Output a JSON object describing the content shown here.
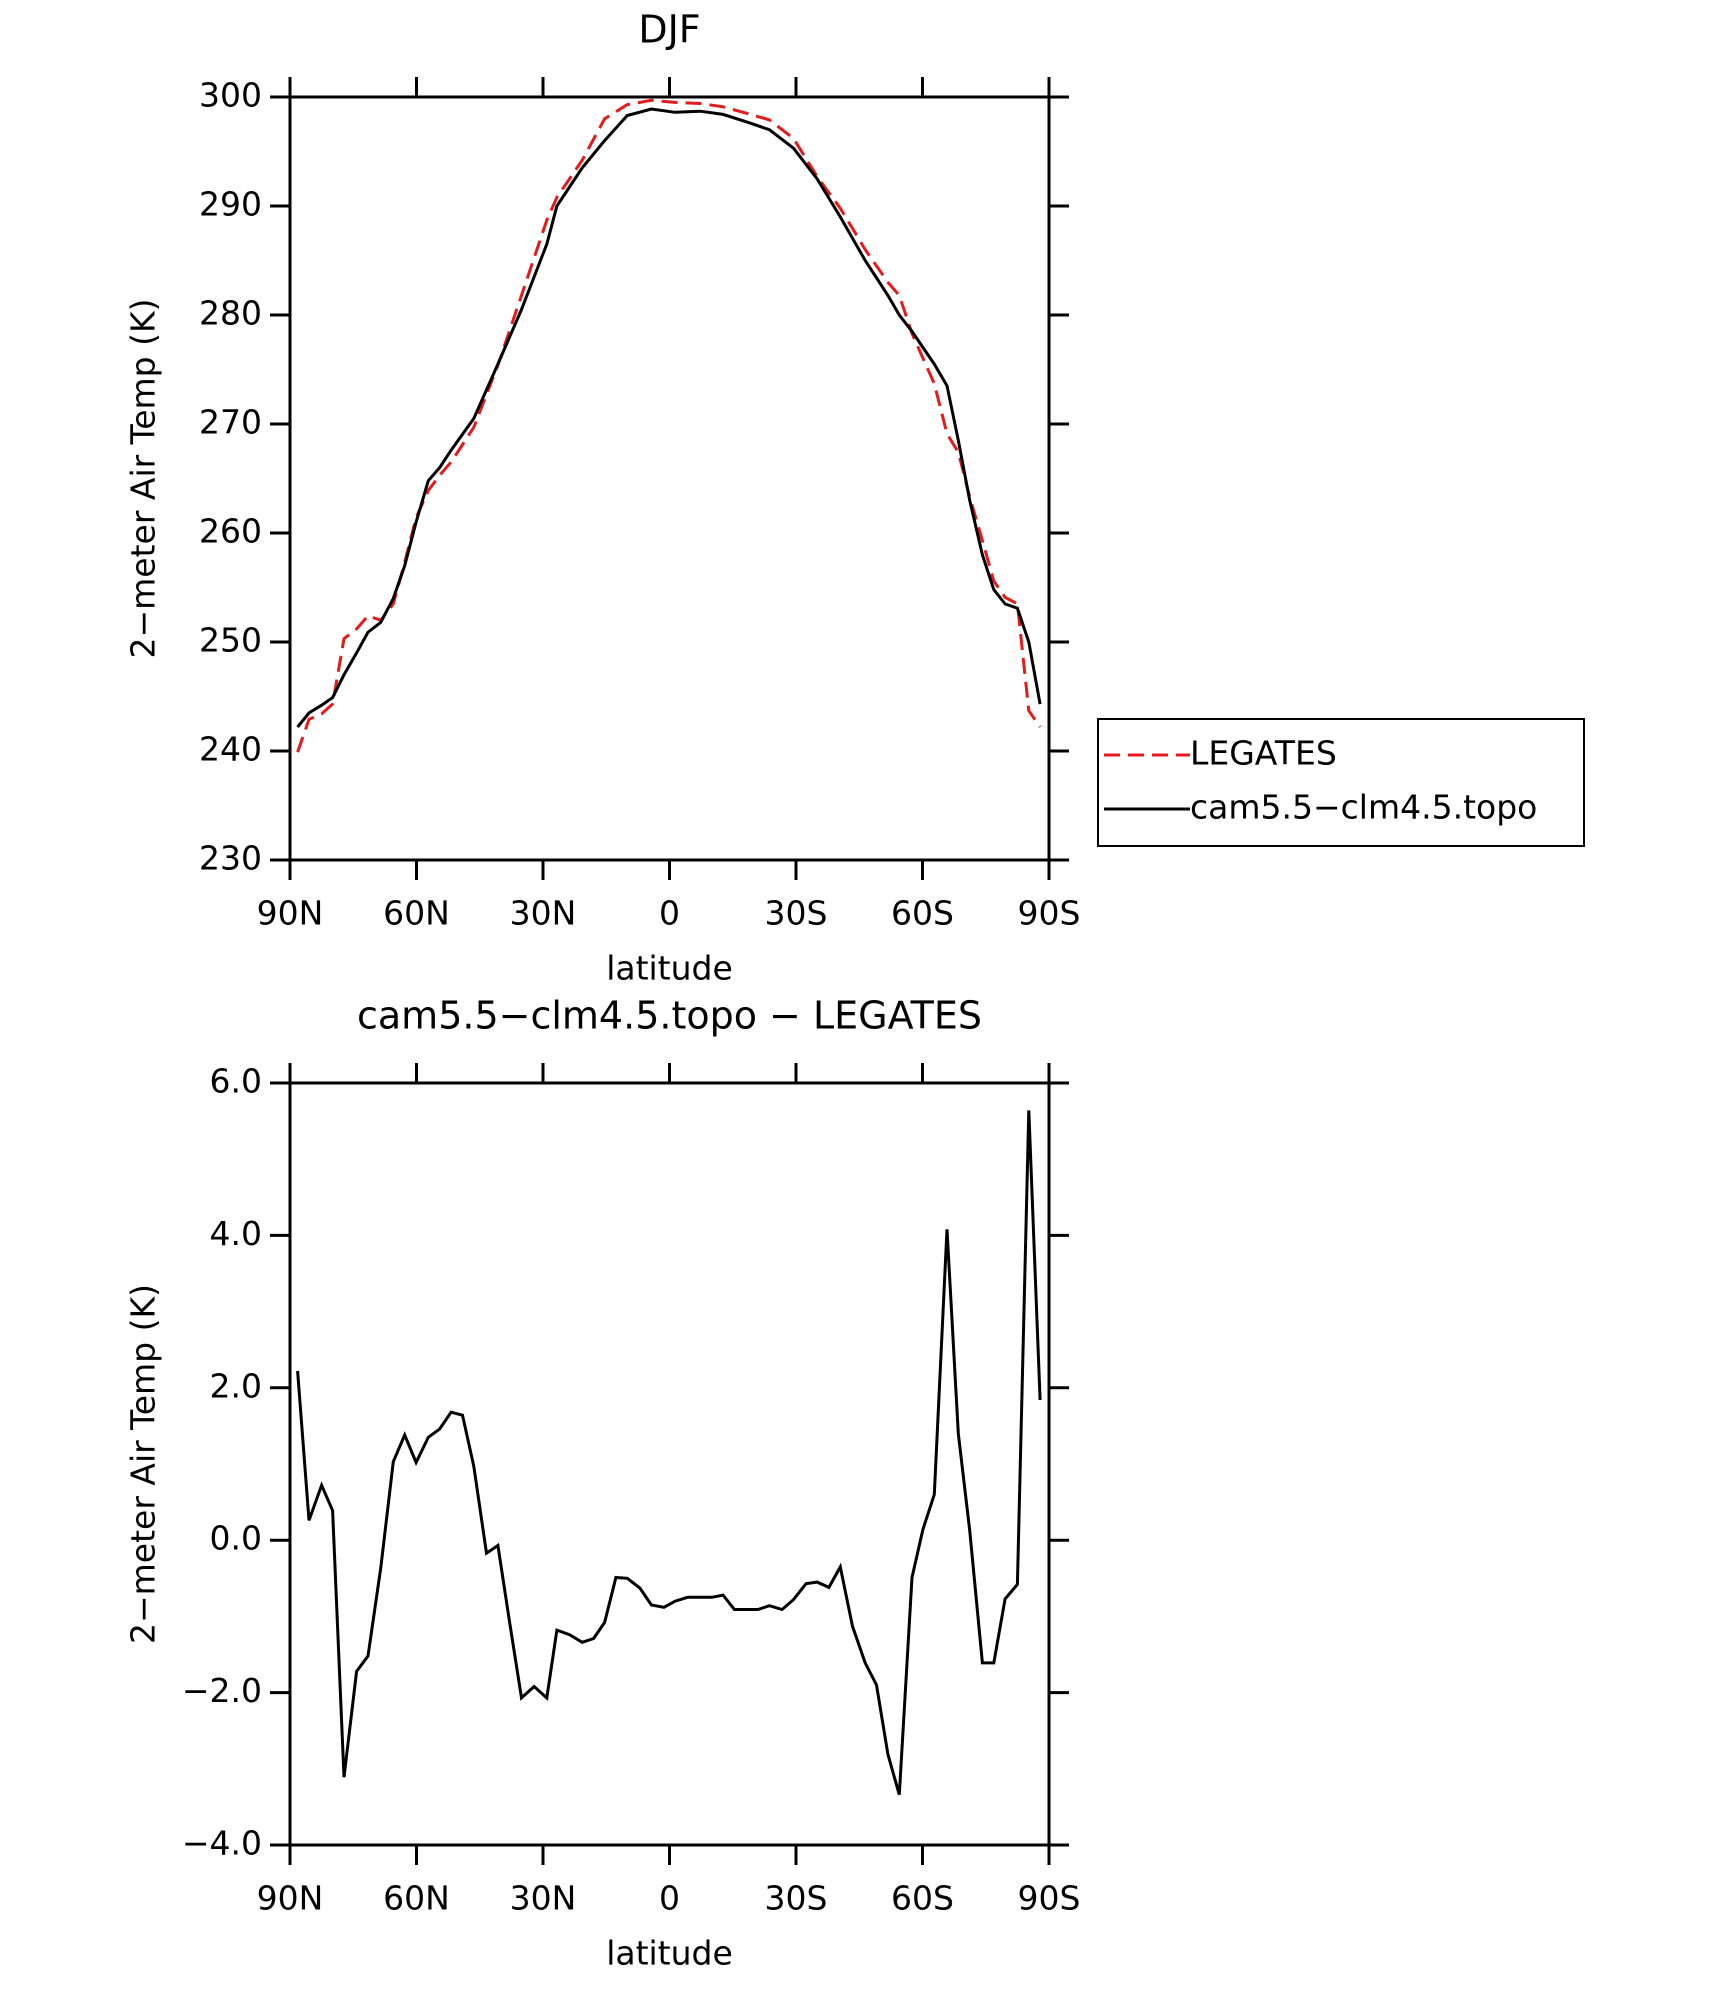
{
  "chart_data": [
    {
      "type": "line",
      "title": "DJF",
      "xlabel": "latitude",
      "ylabel": "2−meter Air Temp (K)",
      "x": [
        88.2,
        85.5,
        82.5,
        79.9,
        77.2,
        74.2,
        71.5,
        68.5,
        65.5,
        62.8,
        60.1,
        57.2,
        54.5,
        51.8,
        46.4,
        40.7,
        35.1,
        29.1,
        26.7,
        20.7,
        15.4,
        10,
        4.3,
        -1.3,
        -7.3,
        -12.7,
        -18.4,
        -23.7,
        -29.4,
        -35,
        -40.5,
        -46.4,
        -51.8,
        -54.5,
        -57.5,
        -62.8,
        -65.8,
        -68.5,
        -71.2,
        -74.2,
        -76.9,
        -79.6,
        -82.5,
        -85.2,
        -87.9
      ],
      "series": [
        {
          "name": "LEGATES",
          "color": "#e41a1c",
          "style": "dashed",
          "values": [
            239.9,
            242.9,
            243.4,
            244.3,
            250.3,
            251.2,
            252.4,
            252,
            253.5,
            257.3,
            261.4,
            263.9,
            265.3,
            266.5,
            269.7,
            275.4,
            281.8,
            288.7,
            290.8,
            294.2,
            298,
            299.3,
            299.7,
            299.5,
            299.4,
            299.1,
            298.5,
            297.9,
            296.2,
            292.7,
            289.8,
            286,
            283,
            281.8,
            278.3,
            273.7,
            269.1,
            267.4,
            263.3,
            259.3,
            255.6,
            254.1,
            253.5,
            243.7,
            242.2
          ]
        },
        {
          "name": "cam5.5−clm4.5.topo",
          "color": "#000000",
          "style": "solid",
          "values": [
            242.2,
            243.5,
            244.2,
            244.9,
            247,
            249,
            250.9,
            251.8,
            254,
            257,
            261,
            264.8,
            266,
            267.6,
            270.5,
            275.5,
            280.5,
            286.5,
            290,
            293.5,
            296,
            298.3,
            298.9,
            298.6,
            298.7,
            298.4,
            297.7,
            297,
            295.3,
            292.5,
            289,
            285,
            281.8,
            280,
            278.5,
            275.5,
            273.5,
            268.5,
            263,
            258,
            254.8,
            253.5,
            253.1,
            250,
            244.3
          ]
        }
      ],
      "xlim": [
        90,
        -90
      ],
      "xticks": [
        {
          "value": 90,
          "label": "90N"
        },
        {
          "value": 60,
          "label": "60N"
        },
        {
          "value": 30,
          "label": "30N"
        },
        0,
        {
          "value": -30,
          "label": "30S"
        },
        {
          "value": -60,
          "label": "60S"
        },
        {
          "value": -90,
          "label": "90S"
        }
      ],
      "ylim": [
        230,
        300
      ],
      "yticks": [
        230,
        240,
        250,
        260,
        270,
        280,
        290,
        300
      ],
      "legend": "outside-right"
    },
    {
      "type": "line",
      "title": "cam5.5−clm4.5.topo − LEGATES",
      "xlabel": "latitude",
      "ylabel": "2−meter Air Temp (K)",
      "x": [
        88.2,
        85.5,
        82.5,
        79.9,
        77.2,
        74.2,
        71.5,
        68.5,
        65.5,
        62.8,
        60.1,
        57.2,
        54.5,
        51.8,
        49.1,
        46.4,
        43.4,
        40.7,
        38,
        35.1,
        32.1,
        29.1,
        26.7,
        23.7,
        20.7,
        18,
        15.4,
        12.7,
        10,
        7,
        4.3,
        1.3,
        -1.3,
        -4.3,
        -7.3,
        -10,
        -12.7,
        -15.4,
        -18.4,
        -21,
        -23.7,
        -26.7,
        -29.4,
        -32.4,
        -35,
        -37.8,
        -40.5,
        -43.4,
        -46.4,
        -49.1,
        -51.8,
        -54.5,
        -57.5,
        -60.1,
        -62.8,
        -65.8,
        -68.5,
        -71.2,
        -74.2,
        -76.9,
        -79.6,
        -82.5,
        -85.2,
        -87.9
      ],
      "values": [
        2.22,
        0.26,
        0.72,
        0.39,
        -3.11,
        -1.72,
        -1.52,
        -0.37,
        1.03,
        1.38,
        1.02,
        1.35,
        1.46,
        1.68,
        1.64,
        0.97,
        -0.17,
        -0.07,
        -1.05,
        -2.07,
        -1.92,
        -2.07,
        -1.18,
        -1.24,
        -1.34,
        -1.29,
        -1.08,
        -0.49,
        -0.5,
        -0.63,
        -0.85,
        -0.88,
        -0.8,
        -0.75,
        -0.75,
        -0.75,
        -0.72,
        -0.91,
        -0.91,
        -0.91,
        -0.86,
        -0.91,
        -0.78,
        -0.57,
        -0.55,
        -0.62,
        -0.35,
        -1.13,
        -1.61,
        -1.9,
        -2.81,
        -3.34,
        -0.49,
        0.14,
        0.6,
        4.08,
        1.4,
        0.13,
        -1.61,
        -1.61,
        -0.77,
        -0.58,
        5.64,
        1.84
      ],
      "color": "#000000",
      "xlim": [
        90,
        -90
      ],
      "xticks": [
        {
          "value": 90,
          "label": "90N"
        },
        {
          "value": 60,
          "label": "60N"
        },
        {
          "value": 30,
          "label": "30N"
        },
        0,
        {
          "value": -30,
          "label": "30S"
        },
        {
          "value": -60,
          "label": "60S"
        },
        {
          "value": -90,
          "label": "90S"
        }
      ],
      "ylim": [
        -4,
        6
      ],
      "yticks": [
        {
          "value": -4,
          "label": "−4.0"
        },
        {
          "value": -2,
          "label": "−2.0"
        },
        {
          "value": 0,
          "label": "0.0"
        },
        {
          "value": 2,
          "label": "2.0"
        },
        {
          "value": 4,
          "label": "4.0"
        },
        {
          "value": 6,
          "label": "6.0"
        }
      ]
    }
  ]
}
